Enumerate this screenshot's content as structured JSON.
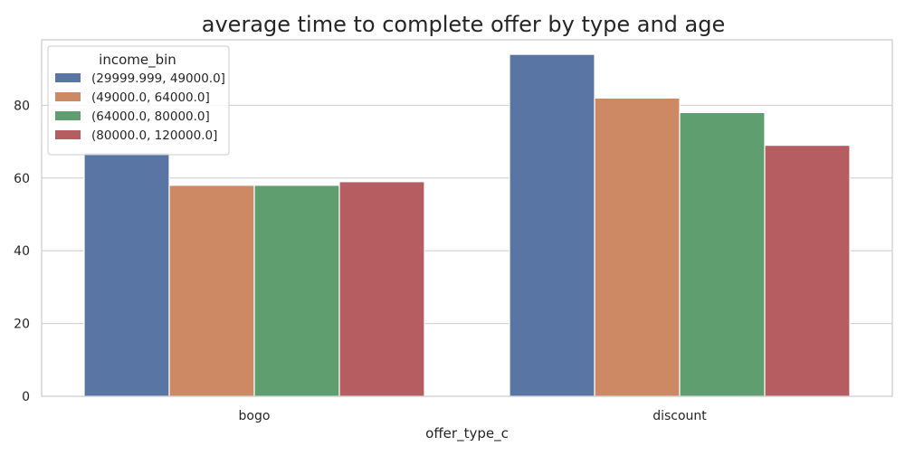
{
  "colors": {
    "series": [
      "#5975a4",
      "#cc8963",
      "#5f9e6e",
      "#b55d60"
    ],
    "grid": "#cccccc",
    "frame": "#cccccc",
    "legend_border": "#cccccc",
    "background": "#ffffff"
  },
  "chart_data": {
    "type": "bar",
    "title": "average time to complete offer by type and age",
    "xlabel": "offer_type_c",
    "ylabel": "",
    "ylim": [
      0,
      98
    ],
    "yticks": [
      0,
      20,
      40,
      60,
      80
    ],
    "grid": true,
    "categories": [
      "bogo",
      "discount"
    ],
    "legend": {
      "title": "income_bin",
      "placement": "top-left"
    },
    "series": [
      {
        "name": "(29999.999, 49000.0]",
        "values": [
          67,
          94
        ]
      },
      {
        "name": "(49000.0, 64000.0]",
        "values": [
          58,
          82
        ]
      },
      {
        "name": "(64000.0, 80000.0]",
        "values": [
          58,
          78
        ]
      },
      {
        "name": "(80000.0, 120000.0]",
        "values": [
          59,
          69
        ]
      }
    ]
  }
}
